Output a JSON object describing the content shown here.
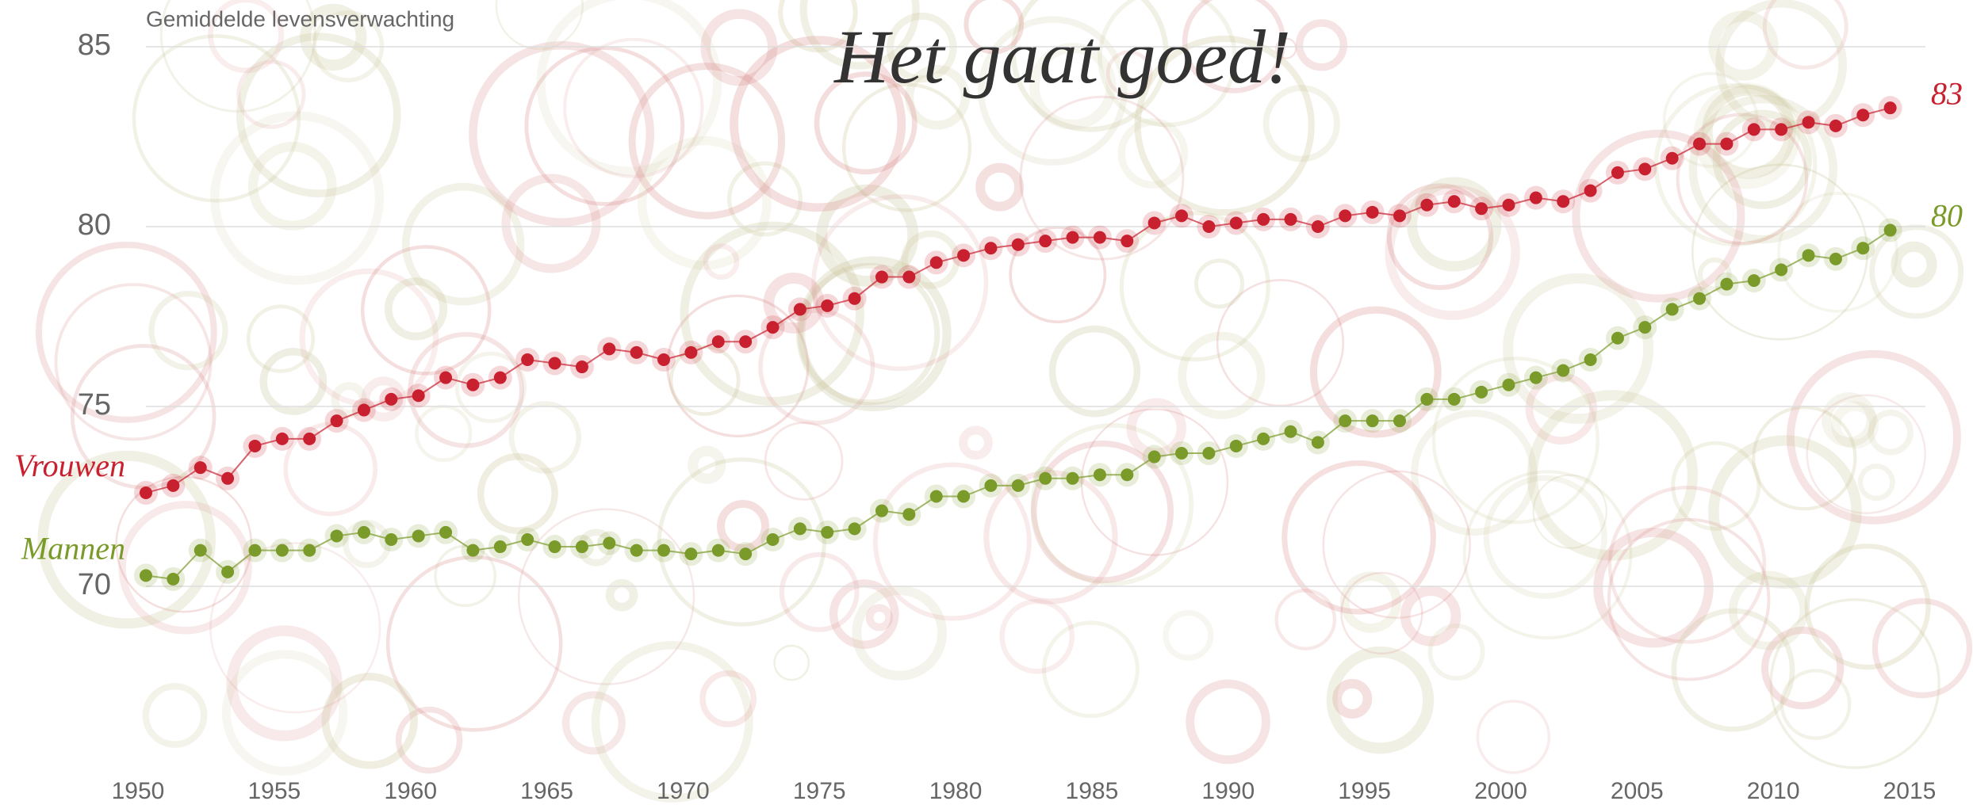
{
  "chart_data": {
    "type": "line",
    "title": "Het gaat goed!",
    "ylabel": "Gemiddelde levensverwachting",
    "x": [
      1950,
      1951,
      1952,
      1953,
      1954,
      1955,
      1956,
      1957,
      1958,
      1959,
      1960,
      1961,
      1962,
      1963,
      1964,
      1965,
      1966,
      1967,
      1968,
      1969,
      1970,
      1971,
      1972,
      1973,
      1974,
      1975,
      1976,
      1977,
      1978,
      1979,
      1980,
      1981,
      1982,
      1983,
      1984,
      1985,
      1986,
      1987,
      1988,
      1989,
      1990,
      1991,
      1992,
      1993,
      1994,
      1995,
      1996,
      1997,
      1998,
      1999,
      2000,
      2001,
      2002,
      2003,
      2004,
      2005,
      2006,
      2007,
      2008,
      2009,
      2010,
      2011,
      2012,
      2013,
      2014
    ],
    "series": [
      {
        "name": "Vrouwen",
        "color": "#c8202f",
        "end_label": "83",
        "values": [
          72.6,
          72.8,
          73.3,
          73.0,
          73.9,
          74.1,
          74.1,
          74.6,
          74.9,
          75.2,
          75.3,
          75.8,
          75.6,
          75.8,
          76.3,
          76.2,
          76.1,
          76.6,
          76.5,
          76.3,
          76.5,
          76.8,
          76.8,
          77.2,
          77.7,
          77.8,
          78.0,
          78.6,
          78.6,
          79.0,
          79.2,
          79.4,
          79.5,
          79.6,
          79.7,
          79.7,
          79.6,
          80.1,
          80.3,
          80.0,
          80.1,
          80.2,
          80.2,
          80.0,
          80.3,
          80.4,
          80.3,
          80.6,
          80.7,
          80.5,
          80.6,
          80.8,
          80.7,
          81.0,
          81.5,
          81.6,
          81.9,
          82.3,
          82.3,
          82.7,
          82.7,
          82.9,
          82.8,
          83.1,
          83.3
        ]
      },
      {
        "name": "Mannen",
        "color": "#7a9a2a",
        "end_label": "80",
        "values": [
          70.3,
          70.2,
          71.0,
          70.4,
          71.0,
          71.0,
          71.0,
          71.4,
          71.5,
          71.3,
          71.4,
          71.5,
          71.0,
          71.1,
          71.3,
          71.1,
          71.1,
          71.2,
          71.0,
          71.0,
          70.9,
          71.0,
          70.9,
          71.3,
          71.6,
          71.5,
          71.6,
          72.1,
          72.0,
          72.5,
          72.5,
          72.8,
          72.8,
          73.0,
          73.0,
          73.1,
          73.1,
          73.6,
          73.7,
          73.7,
          73.9,
          74.1,
          74.3,
          74.0,
          74.6,
          74.6,
          74.6,
          75.2,
          75.2,
          75.4,
          75.6,
          75.8,
          76.0,
          76.3,
          76.9,
          77.2,
          77.7,
          78.0,
          78.4,
          78.5,
          78.8,
          79.2,
          79.1,
          79.4,
          79.9
        ]
      }
    ],
    "xlim": [
      1950,
      2015
    ],
    "xticks": [
      1950,
      1955,
      1960,
      1965,
      1970,
      1975,
      1980,
      1985,
      1990,
      1995,
      2000,
      2005,
      2010,
      2015
    ],
    "ylim": [
      65,
      86
    ],
    "yticks": [
      70,
      75,
      80,
      85
    ],
    "grid": true
  }
}
